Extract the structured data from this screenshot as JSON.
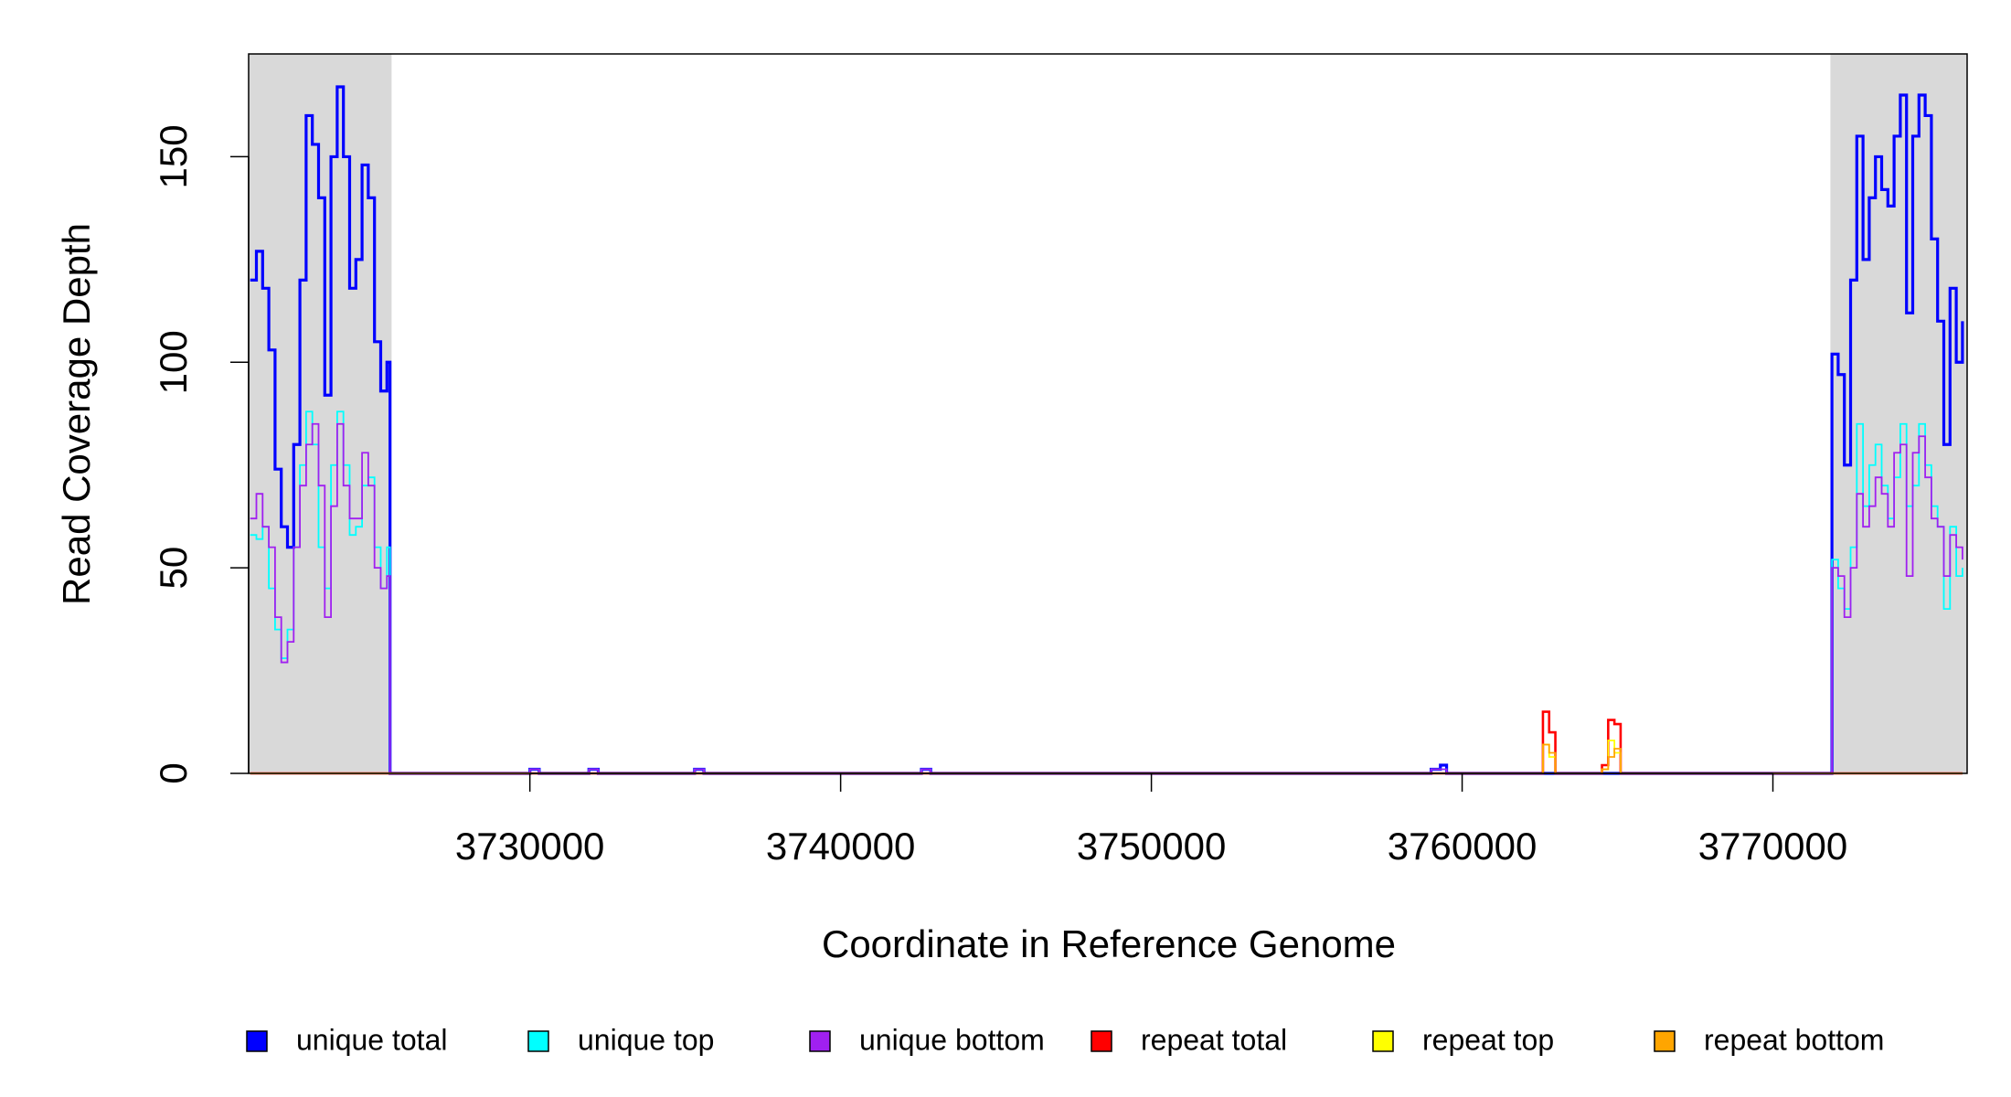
{
  "chart_data": {
    "type": "line",
    "step": true,
    "xlabel": "Coordinate in Reference Genome",
    "ylabel": "Read Coverage Depth",
    "xlim": [
      3720950,
      3776250
    ],
    "ylim": [
      0,
      175
    ],
    "xticks": [
      3730000,
      3740000,
      3750000,
      3760000,
      3770000
    ],
    "yticks": [
      0,
      50,
      100,
      150
    ],
    "shaded_ranges": [
      [
        3720950,
        3725550
      ],
      [
        3771850,
        3776250
      ]
    ],
    "shade_color": "#d9d9d9",
    "legend": "bottom",
    "x": [
      3721000,
      3721200,
      3721400,
      3721600,
      3721800,
      3722000,
      3722200,
      3722400,
      3722600,
      3722800,
      3723000,
      3723200,
      3723400,
      3723600,
      3723800,
      3724000,
      3724200,
      3724400,
      3724600,
      3724800,
      3725000,
      3725200,
      3725400,
      3725500,
      3730000,
      3730300,
      3731900,
      3732200,
      3735300,
      3735600,
      3742600,
      3742900,
      3759000,
      3759300,
      3759500,
      3762400,
      3762600,
      3762800,
      3763000,
      3764500,
      3764700,
      3764900,
      3765100,
      3771800,
      3771900,
      3772100,
      3772300,
      3772500,
      3772700,
      3772900,
      3773100,
      3773300,
      3773500,
      3773700,
      3773900,
      3774100,
      3774300,
      3774500,
      3774700,
      3774900,
      3775100,
      3775300,
      3775500,
      3775700,
      3775900,
      3776100
    ],
    "series": [
      {
        "name": "unique total",
        "color": "#0000ff",
        "width": 3.2,
        "values": [
          120,
          127,
          118,
          103,
          74,
          60,
          55,
          80,
          120,
          160,
          153,
          140,
          92,
          150,
          167,
          150,
          118,
          125,
          148,
          140,
          105,
          93,
          100,
          0,
          1,
          0,
          1,
          0,
          1,
          0,
          1,
          0,
          1,
          2,
          0,
          0,
          0,
          0,
          0,
          0,
          0,
          0,
          0,
          0,
          102,
          97,
          75,
          120,
          155,
          125,
          140,
          150,
          142,
          138,
          155,
          165,
          112,
          155,
          165,
          160,
          130,
          110,
          80,
          118,
          100,
          110
        ]
      },
      {
        "name": "unique top",
        "color": "#00ffff",
        "width": 1.8,
        "values": [
          58,
          57,
          60,
          45,
          35,
          28,
          35,
          55,
          75,
          88,
          80,
          55,
          45,
          75,
          88,
          75,
          58,
          60,
          70,
          72,
          55,
          45,
          55,
          0,
          1,
          0,
          1,
          0,
          1,
          0,
          1,
          0,
          1,
          1,
          0,
          0,
          0,
          0,
          0,
          0,
          0,
          0,
          0,
          0,
          52,
          45,
          40,
          55,
          85,
          65,
          75,
          80,
          70,
          62,
          72,
          85,
          65,
          70,
          85,
          75,
          65,
          60,
          40,
          60,
          48,
          50
        ]
      },
      {
        "name": "unique bottom",
        "color": "#a020f0",
        "width": 1.8,
        "values": [
          62,
          68,
          60,
          55,
          38,
          27,
          32,
          55,
          70,
          80,
          85,
          70,
          38,
          65,
          85,
          70,
          62,
          62,
          78,
          70,
          50,
          45,
          48,
          0,
          1,
          0,
          1,
          0,
          1,
          0,
          1,
          0,
          1,
          1,
          0,
          0,
          0,
          0,
          0,
          0,
          0,
          0,
          0,
          0,
          50,
          48,
          38,
          50,
          68,
          60,
          65,
          72,
          68,
          60,
          78,
          80,
          48,
          78,
          82,
          72,
          62,
          60,
          48,
          58,
          55,
          52
        ]
      },
      {
        "name": "repeat total",
        "color": "#ff0000",
        "width": 2.6,
        "values": [
          0,
          0,
          0,
          0,
          0,
          0,
          0,
          0,
          0,
          0,
          0,
          0,
          0,
          0,
          0,
          0,
          0,
          0,
          0,
          0,
          0,
          0,
          0,
          0,
          0,
          0,
          0,
          0,
          0,
          0,
          0,
          0,
          0,
          0,
          0,
          0,
          15,
          10,
          0,
          2,
          13,
          12,
          0,
          0,
          0,
          0,
          0,
          0,
          0,
          0,
          0,
          0,
          0,
          0,
          0,
          0,
          0,
          0,
          0,
          0,
          0,
          0,
          0,
          0,
          0,
          0
        ]
      },
      {
        "name": "repeat top",
        "color": "#ffff00",
        "width": 1.8,
        "values": [
          0,
          0,
          0,
          0,
          0,
          0,
          0,
          0,
          0,
          0,
          0,
          0,
          0,
          0,
          0,
          0,
          0,
          0,
          0,
          0,
          0,
          0,
          0,
          0,
          0,
          0,
          0,
          0,
          0,
          0,
          0,
          0,
          0,
          0,
          0,
          0,
          7,
          4,
          0,
          1,
          8,
          5,
          0,
          0,
          0,
          0,
          0,
          0,
          0,
          0,
          0,
          0,
          0,
          0,
          0,
          0,
          0,
          0,
          0,
          0,
          0,
          0,
          0,
          0,
          0,
          0
        ]
      },
      {
        "name": "repeat bottom",
        "color": "#ffa500",
        "width": 1.8,
        "values": [
          0,
          0,
          0,
          0,
          0,
          0,
          0,
          0,
          0,
          0,
          0,
          0,
          0,
          0,
          0,
          0,
          0,
          0,
          0,
          0,
          0,
          0,
          0,
          0,
          0,
          0,
          0,
          0,
          0,
          0,
          0,
          0,
          0,
          0,
          0,
          0,
          7,
          5,
          0,
          1,
          4,
          6,
          0,
          0,
          0,
          0,
          0,
          0,
          0,
          0,
          0,
          0,
          0,
          0,
          0,
          0,
          0,
          0,
          0,
          0,
          0,
          0,
          0,
          0,
          0,
          0
        ]
      }
    ]
  }
}
